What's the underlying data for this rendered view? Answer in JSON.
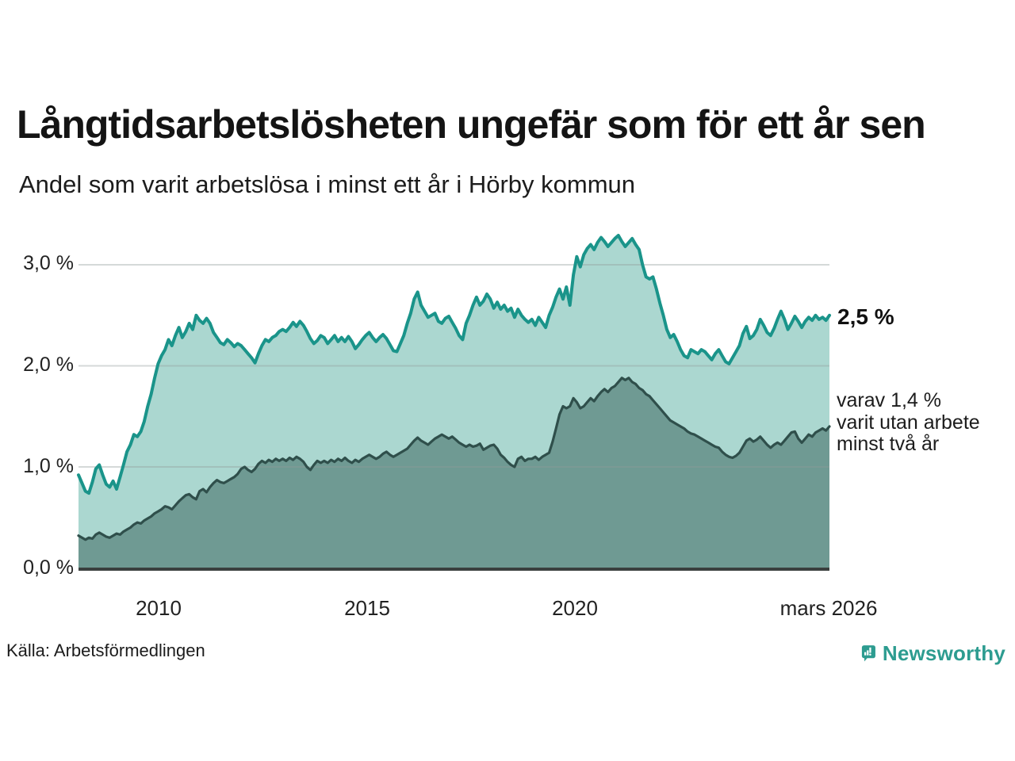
{
  "title": "Långtidsarbetslösheten ungefär som för ett år sen",
  "subtitle": "Andel som varit arbetslösa i minst ett år i Hörby kommun",
  "source": {
    "label": "Källa: Arbetsförmedlingen"
  },
  "logo": {
    "name": "Newsworthy",
    "color": "#2d9c90"
  },
  "annotations": {
    "latest_label": "2,5 %",
    "secondary": [
      "varav 1,4 %",
      "varit utan arbete",
      "minst två år"
    ]
  },
  "chart_data": {
    "type": "area",
    "title": "Andel som varit arbetslösa i minst ett år i Hörby kommun",
    "x_start": "2008-02",
    "x_end": "2026-03",
    "x_step": "1 month",
    "x_tick_labels": [
      "2010",
      "2015",
      "2020",
      "mars 2026"
    ],
    "y_tick_labels": [
      "3,0 %",
      "2,0 %",
      "1,0 %",
      "0,0 %"
    ],
    "y_tick_values": [
      3.0,
      2.0,
      1.0,
      0.0
    ],
    "ylim": [
      0,
      3.35
    ],
    "grid": true,
    "legend": "none",
    "unit": "%",
    "grid_color": "rgba(145,155,152,0.38)",
    "axis_line_color": "#3a3f3e",
    "series": [
      {
        "name": "Andel arbetslösa minst ett år",
        "latest_value": 2.5,
        "line_color": "#1a948a",
        "fill_color": "#abd7d0",
        "values": [
          0.92,
          0.84,
          0.76,
          0.74,
          0.85,
          0.98,
          1.02,
          0.92,
          0.83,
          0.8,
          0.86,
          0.78,
          0.9,
          1.02,
          1.15,
          1.22,
          1.32,
          1.3,
          1.35,
          1.45,
          1.6,
          1.72,
          1.88,
          2.02,
          2.1,
          2.16,
          2.26,
          2.2,
          2.3,
          2.38,
          2.28,
          2.34,
          2.42,
          2.36,
          2.5,
          2.45,
          2.42,
          2.47,
          2.42,
          2.33,
          2.28,
          2.23,
          2.21,
          2.26,
          2.23,
          2.19,
          2.22,
          2.2,
          2.16,
          2.12,
          2.08,
          2.03,
          2.12,
          2.2,
          2.26,
          2.24,
          2.28,
          2.3,
          2.34,
          2.36,
          2.34,
          2.38,
          2.43,
          2.39,
          2.44,
          2.4,
          2.34,
          2.27,
          2.22,
          2.25,
          2.3,
          2.28,
          2.22,
          2.26,
          2.3,
          2.24,
          2.28,
          2.24,
          2.29,
          2.24,
          2.17,
          2.21,
          2.26,
          2.3,
          2.33,
          2.28,
          2.24,
          2.28,
          2.31,
          2.27,
          2.21,
          2.15,
          2.14,
          2.22,
          2.3,
          2.42,
          2.52,
          2.66,
          2.73,
          2.6,
          2.54,
          2.48,
          2.5,
          2.52,
          2.44,
          2.42,
          2.47,
          2.49,
          2.43,
          2.37,
          2.3,
          2.26,
          2.42,
          2.5,
          2.6,
          2.68,
          2.6,
          2.64,
          2.71,
          2.66,
          2.57,
          2.63,
          2.56,
          2.6,
          2.54,
          2.57,
          2.48,
          2.56,
          2.5,
          2.46,
          2.43,
          2.46,
          2.4,
          2.48,
          2.43,
          2.38,
          2.5,
          2.58,
          2.68,
          2.76,
          2.66,
          2.78,
          2.6,
          2.9,
          3.08,
          2.98,
          3.1,
          3.16,
          3.2,
          3.15,
          3.22,
          3.27,
          3.23,
          3.18,
          3.22,
          3.26,
          3.29,
          3.23,
          3.18,
          3.22,
          3.26,
          3.2,
          3.15,
          3.0,
          2.88,
          2.86,
          2.88,
          2.76,
          2.62,
          2.5,
          2.36,
          2.28,
          2.31,
          2.24,
          2.16,
          2.1,
          2.08,
          2.16,
          2.14,
          2.12,
          2.16,
          2.14,
          2.1,
          2.06,
          2.12,
          2.16,
          2.1,
          2.04,
          2.02,
          2.08,
          2.14,
          2.2,
          2.32,
          2.39,
          2.27,
          2.3,
          2.36,
          2.46,
          2.4,
          2.33,
          2.3,
          2.37,
          2.46,
          2.54,
          2.46,
          2.36,
          2.42,
          2.49,
          2.44,
          2.38,
          2.44,
          2.48,
          2.45,
          2.5,
          2.46,
          2.48,
          2.45,
          2.5
        ]
      },
      {
        "name": "Andel arbetslösa minst två år",
        "latest_value": 1.4,
        "line_color": "#2f4f4b",
        "fill_color": "#6f9a93",
        "values": [
          0.32,
          0.3,
          0.28,
          0.3,
          0.29,
          0.33,
          0.35,
          0.33,
          0.31,
          0.3,
          0.32,
          0.34,
          0.33,
          0.36,
          0.38,
          0.4,
          0.43,
          0.45,
          0.44,
          0.47,
          0.49,
          0.51,
          0.54,
          0.56,
          0.58,
          0.61,
          0.6,
          0.58,
          0.62,
          0.66,
          0.69,
          0.72,
          0.73,
          0.7,
          0.68,
          0.76,
          0.78,
          0.75,
          0.8,
          0.84,
          0.87,
          0.85,
          0.84,
          0.86,
          0.88,
          0.9,
          0.93,
          0.98,
          1.0,
          0.97,
          0.95,
          0.98,
          1.03,
          1.06,
          1.04,
          1.07,
          1.05,
          1.08,
          1.06,
          1.08,
          1.06,
          1.09,
          1.07,
          1.1,
          1.08,
          1.05,
          1.0,
          0.97,
          1.02,
          1.06,
          1.04,
          1.06,
          1.04,
          1.07,
          1.05,
          1.08,
          1.06,
          1.09,
          1.06,
          1.04,
          1.07,
          1.05,
          1.08,
          1.1,
          1.12,
          1.1,
          1.08,
          1.1,
          1.13,
          1.15,
          1.12,
          1.1,
          1.12,
          1.14,
          1.16,
          1.18,
          1.22,
          1.26,
          1.29,
          1.26,
          1.24,
          1.22,
          1.25,
          1.28,
          1.3,
          1.32,
          1.3,
          1.28,
          1.3,
          1.27,
          1.24,
          1.22,
          1.2,
          1.22,
          1.2,
          1.21,
          1.23,
          1.17,
          1.19,
          1.21,
          1.22,
          1.18,
          1.12,
          1.09,
          1.05,
          1.02,
          1.0,
          1.08,
          1.1,
          1.06,
          1.08,
          1.08,
          1.1,
          1.07,
          1.1,
          1.12,
          1.14,
          1.25,
          1.38,
          1.52,
          1.6,
          1.58,
          1.6,
          1.68,
          1.64,
          1.58,
          1.6,
          1.64,
          1.68,
          1.65,
          1.7,
          1.74,
          1.77,
          1.74,
          1.78,
          1.8,
          1.84,
          1.88,
          1.86,
          1.88,
          1.84,
          1.82,
          1.78,
          1.76,
          1.72,
          1.7,
          1.66,
          1.62,
          1.58,
          1.54,
          1.5,
          1.46,
          1.44,
          1.42,
          1.4,
          1.38,
          1.35,
          1.33,
          1.32,
          1.3,
          1.28,
          1.26,
          1.24,
          1.22,
          1.2,
          1.19,
          1.15,
          1.12,
          1.1,
          1.09,
          1.11,
          1.14,
          1.2,
          1.26,
          1.28,
          1.25,
          1.27,
          1.3,
          1.26,
          1.22,
          1.19,
          1.22,
          1.24,
          1.22,
          1.26,
          1.3,
          1.34,
          1.35,
          1.28,
          1.24,
          1.28,
          1.32,
          1.3,
          1.34,
          1.36,
          1.38,
          1.36,
          1.4
        ]
      }
    ]
  }
}
